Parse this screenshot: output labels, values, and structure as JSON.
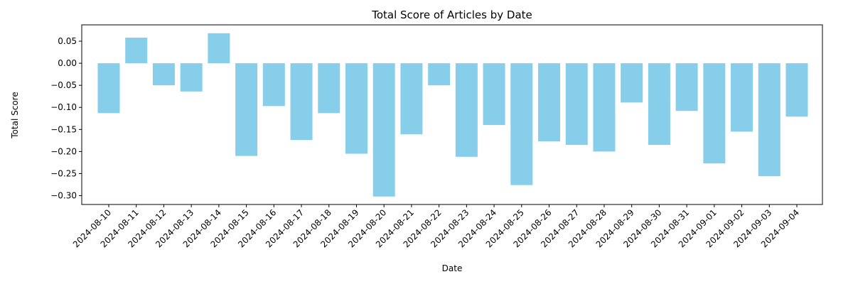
{
  "chart_data": {
    "type": "bar",
    "title": "Total Score of Articles by Date",
    "xlabel": "Date",
    "ylabel": "Total Score",
    "categories": [
      "2024-08-10",
      "2024-08-11",
      "2024-08-12",
      "2024-08-13",
      "2024-08-14",
      "2024-08-15",
      "2024-08-16",
      "2024-08-17",
      "2024-08-18",
      "2024-08-19",
      "2024-08-20",
      "2024-08-21",
      "2024-08-22",
      "2024-08-23",
      "2024-08-24",
      "2024-08-25",
      "2024-08-26",
      "2024-08-27",
      "2024-08-28",
      "2024-08-29",
      "2024-08-30",
      "2024-08-31",
      "2024-09-01",
      "2024-09-02",
      "2024-09-03",
      "2024-09-04"
    ],
    "values": [
      -0.113,
      0.058,
      -0.05,
      -0.064,
      0.068,
      -0.21,
      -0.097,
      -0.174,
      -0.113,
      -0.205,
      -0.302,
      -0.161,
      -0.05,
      -0.212,
      -0.14,
      -0.276,
      -0.177,
      -0.185,
      -0.2,
      -0.089,
      -0.185,
      -0.108,
      -0.227,
      -0.155,
      -0.256,
      -0.121
    ],
    "yticks": [
      0.05,
      0.0,
      -0.05,
      -0.1,
      -0.15,
      -0.2,
      -0.25,
      -0.3
    ],
    "ytick_labels": [
      "0.05",
      "0.00",
      "−0.05",
      "−0.10",
      "−0.15",
      "−0.20",
      "−0.25",
      "−0.30"
    ],
    "ylim": [
      -0.32,
      0.087
    ],
    "bar_color": "#87ceeb",
    "grid": false,
    "legend": "none"
  }
}
